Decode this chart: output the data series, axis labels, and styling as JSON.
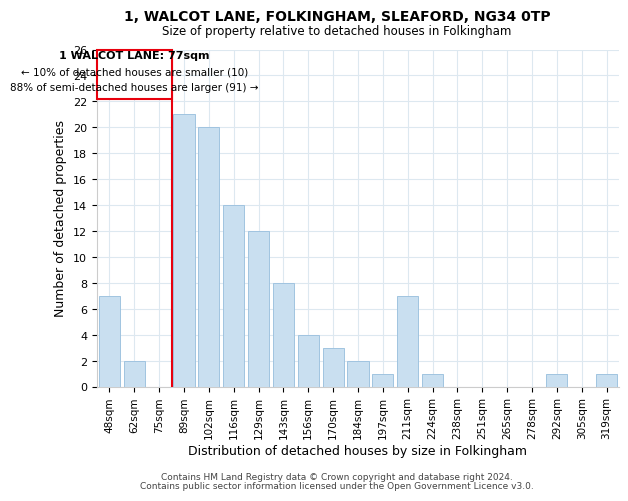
{
  "title": "1, WALCOT LANE, FOLKINGHAM, SLEAFORD, NG34 0TP",
  "subtitle": "Size of property relative to detached houses in Folkingham",
  "xlabel": "Distribution of detached houses by size in Folkingham",
  "ylabel": "Number of detached properties",
  "bar_labels": [
    "48sqm",
    "62sqm",
    "75sqm",
    "89sqm",
    "102sqm",
    "116sqm",
    "129sqm",
    "143sqm",
    "156sqm",
    "170sqm",
    "184sqm",
    "197sqm",
    "211sqm",
    "224sqm",
    "238sqm",
    "251sqm",
    "265sqm",
    "278sqm",
    "292sqm",
    "305sqm",
    "319sqm"
  ],
  "bar_values": [
    7,
    2,
    0,
    21,
    20,
    14,
    12,
    8,
    4,
    3,
    2,
    1,
    7,
    1,
    0,
    0,
    0,
    0,
    1,
    0,
    1
  ],
  "bar_color": "#c9dff0",
  "bar_edge_color": "#a0c4e0",
  "highlight_color": "#e8000d",
  "ylim": [
    0,
    26
  ],
  "yticks": [
    0,
    2,
    4,
    6,
    8,
    10,
    12,
    14,
    16,
    18,
    20,
    22,
    24,
    26
  ],
  "annotation_title": "1 WALCOT LANE: 77sqm",
  "annotation_line1": "← 10% of detached houses are smaller (10)",
  "annotation_line2": "88% of semi-detached houses are larger (91) →",
  "footer1": "Contains HM Land Registry data © Crown copyright and database right 2024.",
  "footer2": "Contains public sector information licensed under the Open Government Licence v3.0.",
  "background_color": "#ffffff",
  "grid_color": "#dde8f0"
}
